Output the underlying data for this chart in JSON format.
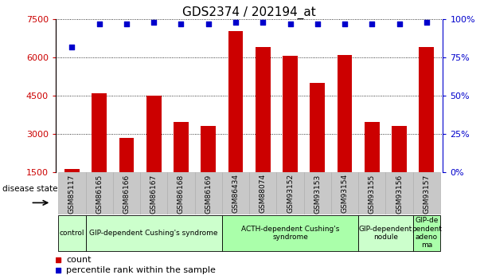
{
  "title": "GDS2374 / 202194_at",
  "samples": [
    "GSM85117",
    "GSM86165",
    "GSM86166",
    "GSM86167",
    "GSM86168",
    "GSM86169",
    "GSM86434",
    "GSM88074",
    "GSM93152",
    "GSM93153",
    "GSM93154",
    "GSM93155",
    "GSM93156",
    "GSM93157"
  ],
  "counts": [
    1600,
    4600,
    2850,
    4500,
    3450,
    3300,
    7050,
    6400,
    6050,
    5000,
    6100,
    3450,
    3300,
    6400
  ],
  "percentiles": [
    82,
    97,
    97,
    98,
    97,
    97,
    98,
    98,
    97,
    97,
    97,
    97,
    97,
    98
  ],
  "bar_color": "#cc0000",
  "dot_color": "#0000cc",
  "ylim_left": [
    1500,
    7500
  ],
  "ylim_right": [
    0,
    100
  ],
  "yticks_left": [
    1500,
    3000,
    4500,
    6000,
    7500
  ],
  "yticks_right": [
    0,
    25,
    50,
    75,
    100
  ],
  "groups": [
    {
      "label": "control",
      "start": 0,
      "end": 1,
      "color": "#ccffcc"
    },
    {
      "label": "GIP-dependent Cushing's syndrome",
      "start": 1,
      "end": 6,
      "color": "#ccffcc"
    },
    {
      "label": "ACTH-dependent Cushing's\nsyndrome",
      "start": 6,
      "end": 11,
      "color": "#aaffaa"
    },
    {
      "label": "GIP-dependent\nnodule",
      "start": 11,
      "end": 13,
      "color": "#ccffcc"
    },
    {
      "label": "GIP-de\npendent\nadeno\nma",
      "start": 13,
      "end": 14,
      "color": "#aaffaa"
    }
  ],
  "disease_state_label": "disease state",
  "legend_count_label": "count",
  "legend_percentile_label": "percentile rank within the sample",
  "title_fontsize": 11,
  "tick_label_fontsize": 6.5,
  "group_label_fontsize": 6.5,
  "legend_fontsize": 8,
  "axis_label_fontsize": 8,
  "sample_col_color": "#c8c8c8",
  "sample_col_edge": "#aaaaaa"
}
